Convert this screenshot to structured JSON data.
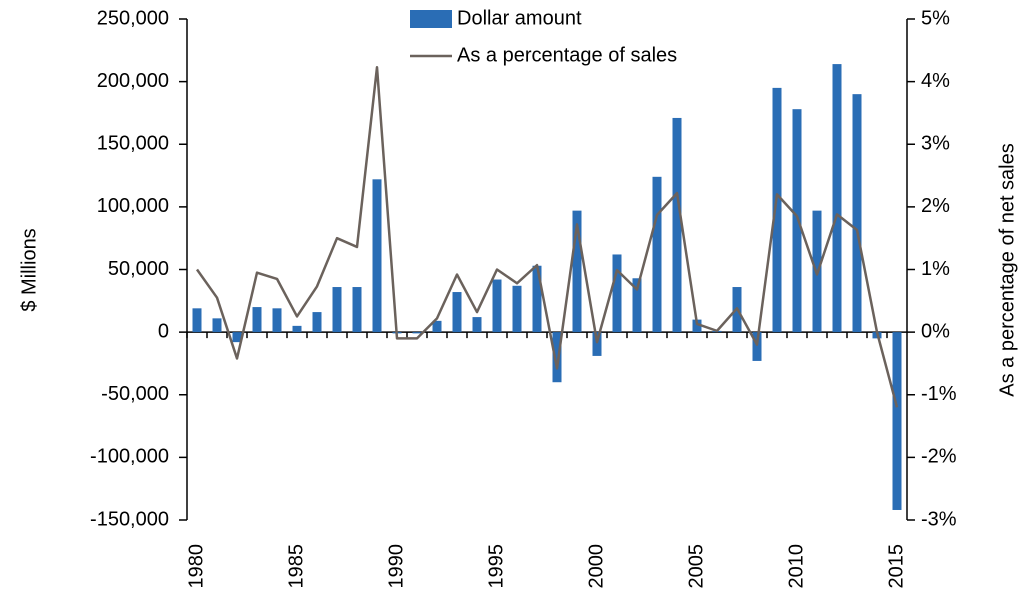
{
  "chart_data": {
    "type": "bar",
    "categories": [
      "1980",
      null,
      null,
      null,
      null,
      "1985",
      null,
      null,
      null,
      null,
      "1990",
      null,
      null,
      null,
      null,
      "1995",
      null,
      null,
      null,
      null,
      "2000",
      null,
      null,
      null,
      null,
      "2005",
      null,
      null,
      null,
      null,
      "2010",
      null,
      null,
      null,
      null,
      "2015"
    ],
    "series": [
      {
        "name": "Dollar amount",
        "type": "bar",
        "color": "#2a6db5",
        "values": [
          19000,
          11000,
          -8000,
          20000,
          19000,
          5000,
          16000,
          36000,
          36000,
          122000,
          -1000,
          -1000,
          9000,
          32000,
          12000,
          42000,
          37000,
          53000,
          -40000,
          97000,
          -19000,
          62000,
          43000,
          124000,
          171000,
          10000,
          1000,
          36000,
          -23000,
          195000,
          178000,
          97000,
          214000,
          190000,
          -5000,
          -142000
        ]
      },
      {
        "name": "As a percentage of sales",
        "type": "line",
        "axis": "y2",
        "color": "#6b625c",
        "values": [
          1.0,
          0.55,
          -0.42,
          0.95,
          0.85,
          0.25,
          0.73,
          1.5,
          1.36,
          4.23,
          -0.1,
          -0.1,
          0.22,
          0.92,
          0.32,
          1.0,
          0.78,
          1.07,
          -0.58,
          1.72,
          -0.16,
          0.99,
          0.68,
          1.87,
          2.22,
          0.13,
          0.02,
          0.38,
          -0.2,
          2.2,
          1.85,
          0.92,
          1.88,
          1.63,
          0.0,
          -1.2
        ]
      }
    ],
    "ylabel": "$ Millions",
    "y2label": "As a percentage of net sales",
    "ylim": [
      -150000,
      250000
    ],
    "yticks": [
      {
        "value": -150000,
        "label": "-150,000"
      },
      {
        "value": -100000,
        "label": "-100,000"
      },
      {
        "value": -50000,
        "label": "-50,000"
      },
      0,
      {
        "value": 50000,
        "label": "50,000"
      },
      {
        "value": 100000,
        "label": "100,000"
      },
      {
        "value": 150000,
        "label": "150,000"
      },
      {
        "value": 200000,
        "label": "200,000"
      },
      {
        "value": 250000,
        "label": "250,000"
      }
    ],
    "y2lim": [
      -3,
      5
    ],
    "y2ticks": [
      {
        "value": -3,
        "label": "-3%"
      },
      {
        "value": -2,
        "label": "-2%"
      },
      {
        "value": -1,
        "label": "-1%"
      },
      {
        "value": 0,
        "label": "0%"
      },
      {
        "value": 1,
        "label": "1%"
      },
      {
        "value": 2,
        "label": "2%"
      },
      {
        "value": 3,
        "label": "3%"
      },
      {
        "value": 4,
        "label": "4%"
      },
      {
        "value": 5,
        "label": "5%"
      }
    ],
    "legend": "top",
    "grid": false
  }
}
